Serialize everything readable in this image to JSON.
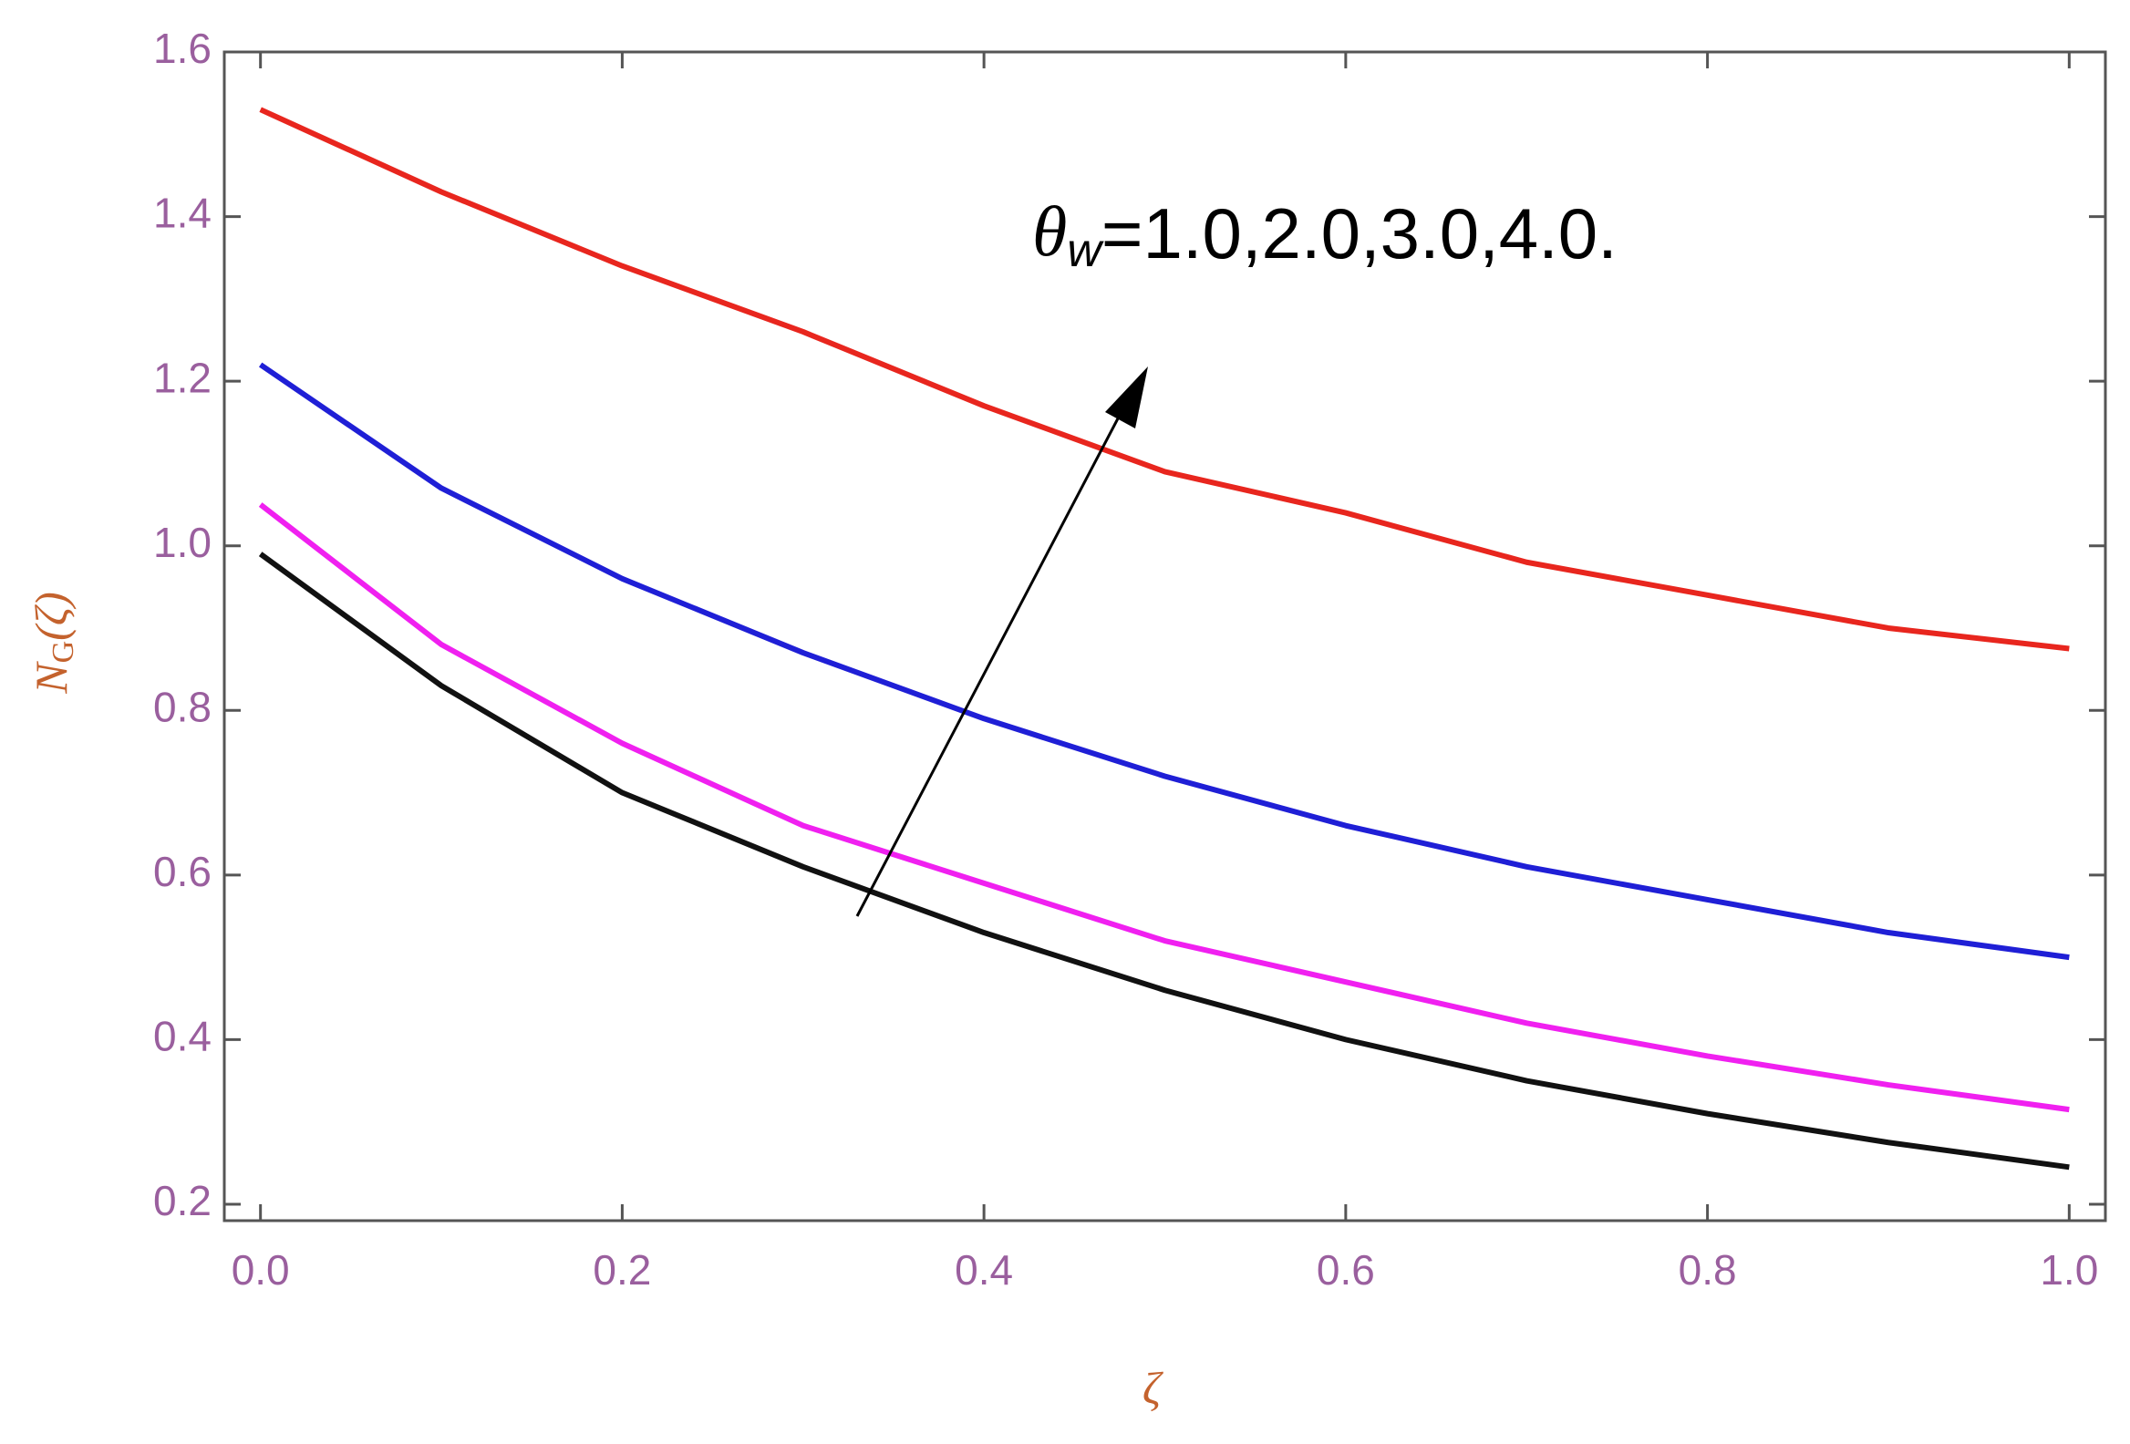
{
  "chart_data": {
    "type": "line",
    "x_label": "ζ",
    "y_label": {
      "main": "N",
      "sub": "G",
      "rest": "(ζ)"
    },
    "annotation": {
      "symbol": "θ",
      "sub": "w",
      "text": "=1.0,2.0,3.0,4.0."
    },
    "x": [
      0,
      0.1,
      0.2,
      0.3,
      0.4,
      0.5,
      0.6,
      0.7,
      0.8,
      0.9,
      1
    ],
    "series": [
      {
        "color": "#e8261e",
        "values": [
          1.53,
          1.43,
          1.34,
          1.26,
          1.17,
          1.09,
          1.04,
          0.98,
          0.94,
          0.9,
          0.875
        ]
      },
      {
        "color": "#1f1fd6",
        "values": [
          1.22,
          1.07,
          0.96,
          0.87,
          0.79,
          0.72,
          0.66,
          0.61,
          0.57,
          0.53,
          0.5
        ]
      },
      {
        "color": "#f020f0",
        "values": [
          1.05,
          0.88,
          0.76,
          0.66,
          0.59,
          0.52,
          0.47,
          0.42,
          0.38,
          0.345,
          0.315
        ]
      },
      {
        "color": "#111111",
        "values": [
          0.99,
          0.83,
          0.7,
          0.61,
          0.53,
          0.46,
          0.4,
          0.35,
          0.31,
          0.275,
          0.245
        ]
      }
    ],
    "xlim": [
      -0.02,
      1.02
    ],
    "ylim": [
      0.18,
      1.6
    ],
    "xticks": [
      {
        "value": 0,
        "label": "0.0"
      },
      0.2,
      0.4,
      0.6,
      0.8,
      {
        "value": 1,
        "label": "1.0"
      }
    ],
    "yticks": [
      0.2,
      0.4,
      0.6,
      0.8,
      {
        "value": 1,
        "label": "1.0"
      },
      1.2,
      1.4,
      1.6
    ]
  }
}
